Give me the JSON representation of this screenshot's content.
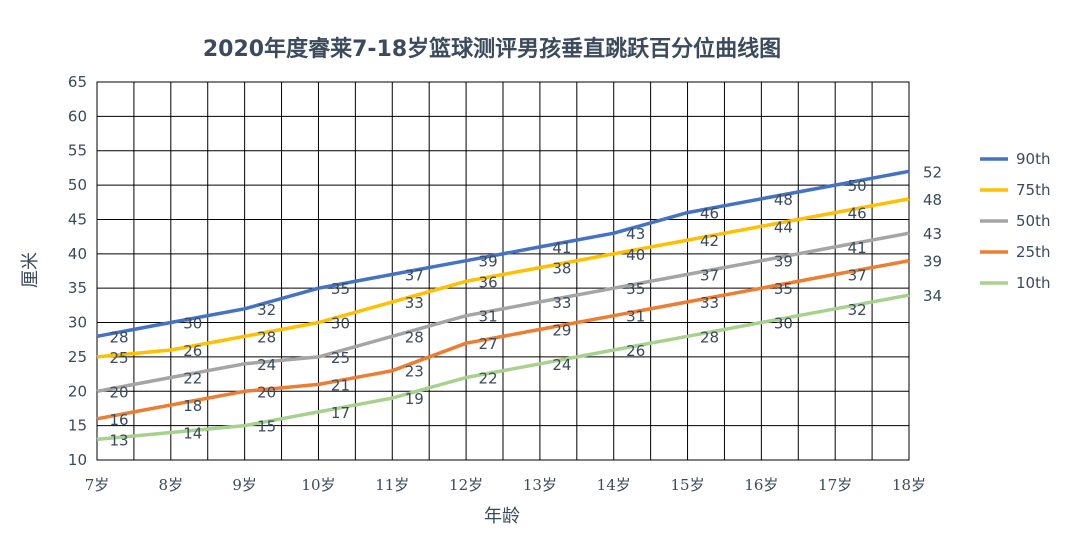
{
  "chart_data": {
    "type": "line",
    "title": "2020年度睿莱7-18岁篮球测评男孩垂直跳跃百分位曲线图",
    "xlabel": "年龄",
    "ylabel": "厘米",
    "categories": [
      "7岁",
      "8岁",
      "9岁",
      "10岁",
      "11岁",
      "12岁",
      "13岁",
      "14岁",
      "15岁",
      "16岁",
      "17岁",
      "18岁"
    ],
    "ylim": [
      10,
      65
    ],
    "yticks": [
      10,
      15,
      20,
      25,
      30,
      35,
      40,
      45,
      50,
      55,
      60,
      65
    ],
    "grid": true,
    "legend_position": "right",
    "series": [
      {
        "name": "90th",
        "color": "#4472c4",
        "values": [
          28,
          30,
          32,
          35,
          37,
          39,
          41,
          43,
          46,
          48,
          50,
          52
        ]
      },
      {
        "name": "75th",
        "color": "#ffc000",
        "values": [
          25,
          26,
          28,
          30,
          33,
          36,
          38,
          40,
          42,
          44,
          46,
          48
        ]
      },
      {
        "name": "50th",
        "color": "#a5a5a5",
        "values": [
          20,
          22,
          24,
          25,
          28,
          31,
          33,
          35,
          37,
          39,
          41,
          43
        ]
      },
      {
        "name": "25th",
        "color": "#ed7d31",
        "values": [
          16,
          18,
          20,
          21,
          23,
          27,
          29,
          31,
          33,
          35,
          37,
          39
        ]
      },
      {
        "name": "10th",
        "color": "#a9d18e",
        "values": [
          13,
          14,
          15,
          17,
          19,
          22,
          24,
          26,
          28,
          30,
          32,
          34
        ]
      }
    ]
  }
}
